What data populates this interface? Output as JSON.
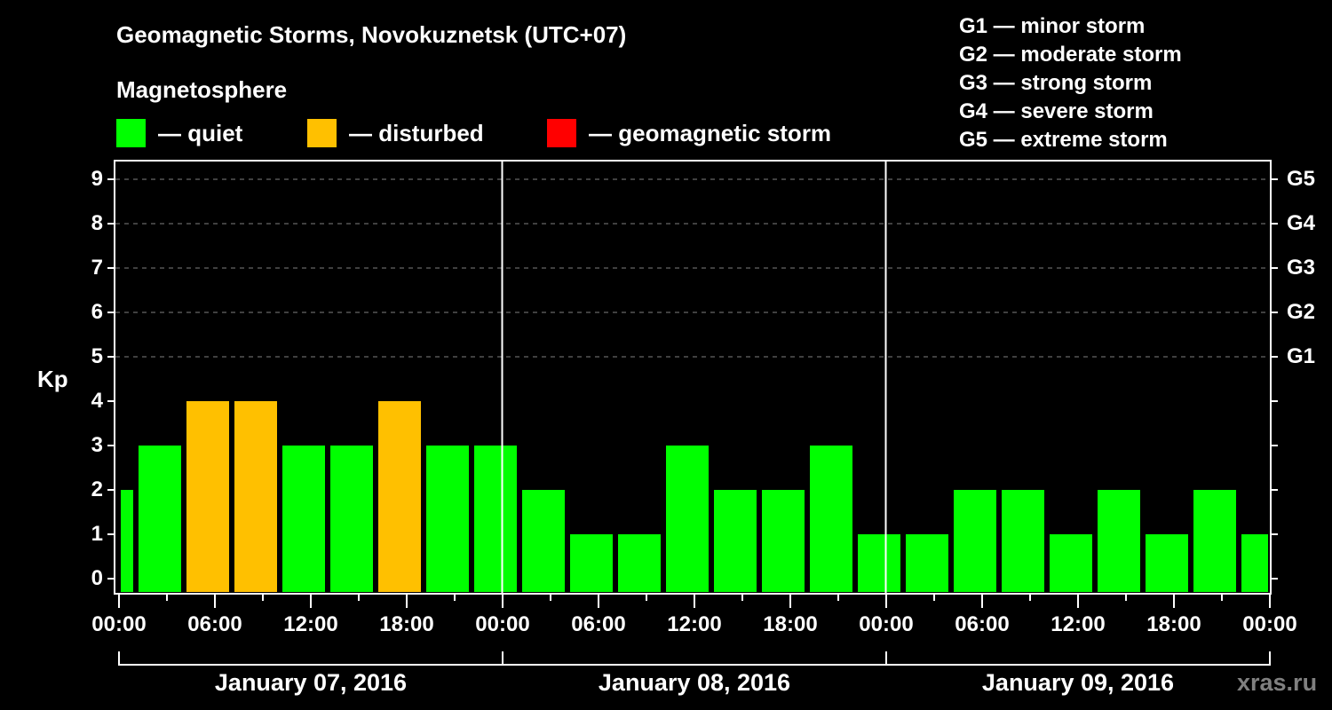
{
  "header": {
    "title": "Geomagnetic Storms, Novokuznetsk (UTC+07)",
    "subtitle": "Magnetosphere"
  },
  "legend": [
    {
      "label": "— quiet",
      "color": "#00ff00"
    },
    {
      "label": "— disturbed",
      "color": "#ffc000"
    },
    {
      "label": "— geomagnetic storm",
      "color": "#ff0000"
    }
  ],
  "storm_levels": [
    "G1 — minor storm",
    "G2 — moderate storm",
    "G3 — strong storm",
    "G4 — severe storm",
    "G5 — extreme storm"
  ],
  "watermark": "xras.ru",
  "colors": {
    "quiet": "#00ff00",
    "disturbed": "#ffc000",
    "storm": "#ff0000",
    "grid": "#808080",
    "axis": "#ffffff"
  },
  "chart_data": {
    "type": "bar",
    "title": "Geomagnetic Storms, Novokuznetsk (UTC+07)",
    "ylabel": "Kp",
    "xlabel": "",
    "ylim": [
      0,
      9
    ],
    "yticks": [
      "0",
      "1",
      "2",
      "3",
      "4",
      "5",
      "6",
      "7",
      "8",
      "9"
    ],
    "right_ticks": [
      {
        "kp": 5,
        "label": "G1"
      },
      {
        "kp": 6,
        "label": "G2"
      },
      {
        "kp": 7,
        "label": "G3"
      },
      {
        "kp": 8,
        "label": "G4"
      },
      {
        "kp": 9,
        "label": "G5"
      }
    ],
    "xtick_labels": [
      "00:00",
      "06:00",
      "12:00",
      "18:00",
      "00:00",
      "06:00",
      "12:00",
      "18:00",
      "00:00",
      "06:00",
      "12:00",
      "18:00",
      "00:00"
    ],
    "dates": [
      "January 07, 2016",
      "January 08, 2016",
      "January 09, 2016"
    ],
    "grid": "dashed horizontal at Kp 5-9",
    "bars": [
      {
        "start_hour": -2,
        "end_hour": 1,
        "kp": 2,
        "status": "quiet"
      },
      {
        "start_hour": 1,
        "end_hour": 4,
        "kp": 3,
        "status": "quiet"
      },
      {
        "start_hour": 4,
        "end_hour": 7,
        "kp": 4,
        "status": "disturbed"
      },
      {
        "start_hour": 7,
        "end_hour": 10,
        "kp": 4,
        "status": "disturbed"
      },
      {
        "start_hour": 10,
        "end_hour": 13,
        "kp": 3,
        "status": "quiet"
      },
      {
        "start_hour": 13,
        "end_hour": 16,
        "kp": 3,
        "status": "quiet"
      },
      {
        "start_hour": 16,
        "end_hour": 19,
        "kp": 4,
        "status": "disturbed"
      },
      {
        "start_hour": 19,
        "end_hour": 22,
        "kp": 3,
        "status": "quiet"
      },
      {
        "start_hour": 22,
        "end_hour": 25,
        "kp": 3,
        "status": "quiet"
      },
      {
        "start_hour": 25,
        "end_hour": 28,
        "kp": 2,
        "status": "quiet"
      },
      {
        "start_hour": 28,
        "end_hour": 31,
        "kp": 1,
        "status": "quiet"
      },
      {
        "start_hour": 31,
        "end_hour": 34,
        "kp": 1,
        "status": "quiet"
      },
      {
        "start_hour": 34,
        "end_hour": 37,
        "kp": 3,
        "status": "quiet"
      },
      {
        "start_hour": 37,
        "end_hour": 40,
        "kp": 2,
        "status": "quiet"
      },
      {
        "start_hour": 40,
        "end_hour": 43,
        "kp": 2,
        "status": "quiet"
      },
      {
        "start_hour": 43,
        "end_hour": 46,
        "kp": 3,
        "status": "quiet"
      },
      {
        "start_hour": 46,
        "end_hour": 49,
        "kp": 1,
        "status": "quiet"
      },
      {
        "start_hour": 49,
        "end_hour": 52,
        "kp": 1,
        "status": "quiet"
      },
      {
        "start_hour": 52,
        "end_hour": 55,
        "kp": 2,
        "status": "quiet"
      },
      {
        "start_hour": 55,
        "end_hour": 58,
        "kp": 2,
        "status": "quiet"
      },
      {
        "start_hour": 58,
        "end_hour": 61,
        "kp": 1,
        "status": "quiet"
      },
      {
        "start_hour": 61,
        "end_hour": 64,
        "kp": 2,
        "status": "quiet"
      },
      {
        "start_hour": 64,
        "end_hour": 67,
        "kp": 1,
        "status": "quiet"
      },
      {
        "start_hour": 67,
        "end_hour": 70,
        "kp": 2,
        "status": "quiet"
      },
      {
        "start_hour": 70,
        "end_hour": 73,
        "kp": 1,
        "status": "quiet"
      }
    ]
  }
}
